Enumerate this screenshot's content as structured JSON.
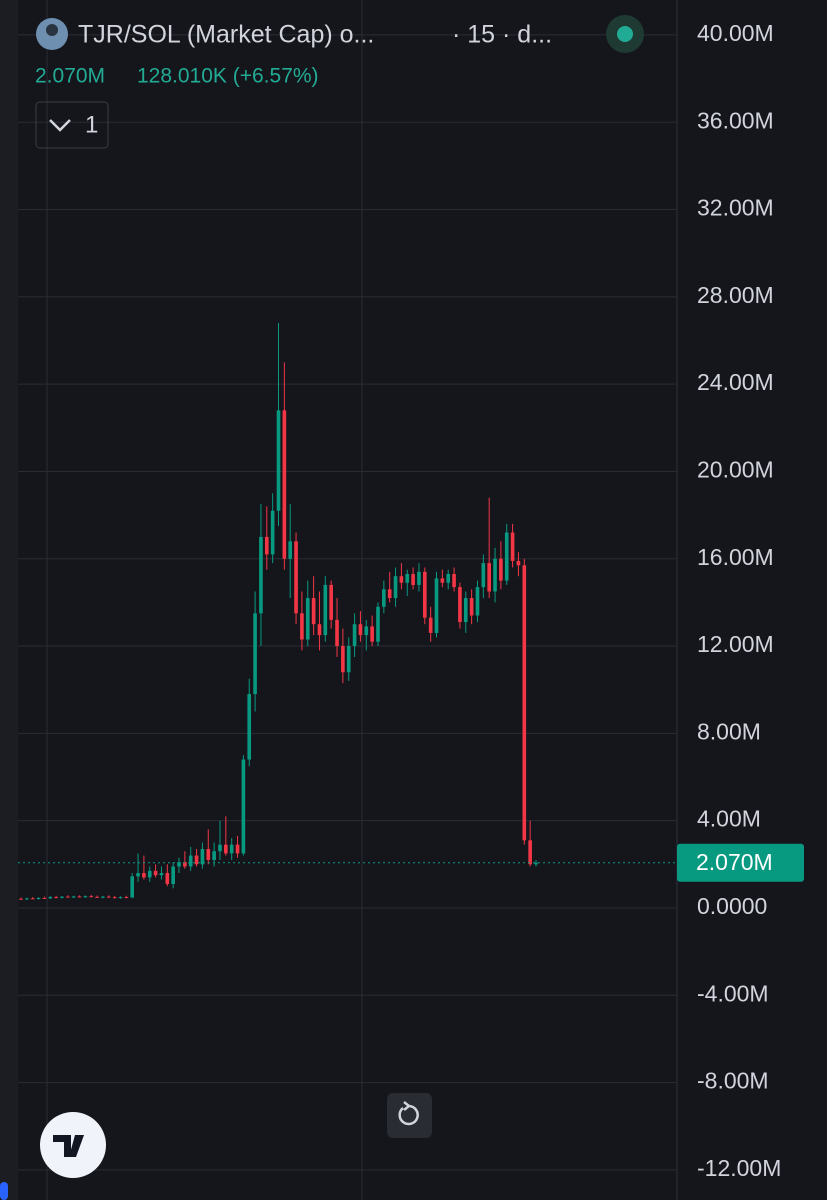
{
  "header": {
    "title": "TJR/SOL (Market Cap) o...",
    "interval": "· 15 · d...",
    "price": "2.070M",
    "change": "128.010K (+6.57%)",
    "button": "1"
  },
  "chart_data": {
    "type": "candlestick",
    "up_color": "#089981",
    "down_color": "#f23645",
    "grid": true,
    "ylim": [
      -13.38,
      41.6
    ],
    "yticks": [
      {
        "value": 40,
        "label": "40.00M"
      },
      {
        "value": 36,
        "label": "36.00M"
      },
      {
        "value": 32,
        "label": "32.00M"
      },
      {
        "value": 28,
        "label": "28.00M"
      },
      {
        "value": 24,
        "label": "24.00M"
      },
      {
        "value": 20,
        "label": "20.00M"
      },
      {
        "value": 16,
        "label": "16.00M"
      },
      {
        "value": 12,
        "label": "12.00M"
      },
      {
        "value": 8,
        "label": "8.00M"
      },
      {
        "value": 4,
        "label": "4.00M"
      },
      {
        "value": 0,
        "label": "0.0000"
      },
      {
        "value": -4,
        "label": "-4.00M"
      },
      {
        "value": -8,
        "label": "-8.00M"
      },
      {
        "value": -12,
        "label": "-12.00M"
      }
    ],
    "candles": [
      {
        "o": 0.42,
        "h": 0.48,
        "l": 0.38,
        "c": 0.4
      },
      {
        "o": 0.4,
        "h": 0.47,
        "l": 0.36,
        "c": 0.44
      },
      {
        "o": 0.44,
        "h": 0.5,
        "l": 0.4,
        "c": 0.41
      },
      {
        "o": 0.41,
        "h": 0.49,
        "l": 0.38,
        "c": 0.46
      },
      {
        "o": 0.46,
        "h": 0.52,
        "l": 0.42,
        "c": 0.44
      },
      {
        "o": 0.44,
        "h": 0.55,
        "l": 0.41,
        "c": 0.5
      },
      {
        "o": 0.5,
        "h": 0.56,
        "l": 0.45,
        "c": 0.47
      },
      {
        "o": 0.47,
        "h": 0.54,
        "l": 0.43,
        "c": 0.52
      },
      {
        "o": 0.52,
        "h": 0.58,
        "l": 0.48,
        "c": 0.49
      },
      {
        "o": 0.49,
        "h": 0.56,
        "l": 0.45,
        "c": 0.53
      },
      {
        "o": 0.53,
        "h": 0.58,
        "l": 0.48,
        "c": 0.5
      },
      {
        "o": 0.5,
        "h": 0.57,
        "l": 0.46,
        "c": 0.54
      },
      {
        "o": 0.54,
        "h": 0.6,
        "l": 0.49,
        "c": 0.51
      },
      {
        "o": 0.51,
        "h": 0.57,
        "l": 0.46,
        "c": 0.48
      },
      {
        "o": 0.48,
        "h": 0.55,
        "l": 0.44,
        "c": 0.52
      },
      {
        "o": 0.52,
        "h": 0.58,
        "l": 0.47,
        "c": 0.49
      },
      {
        "o": 0.49,
        "h": 0.55,
        "l": 0.44,
        "c": 0.47
      },
      {
        "o": 0.47,
        "h": 0.53,
        "l": 0.42,
        "c": 0.5
      },
      {
        "o": 0.5,
        "h": 0.56,
        "l": 0.45,
        "c": 0.48
      },
      {
        "o": 0.48,
        "h": 1.6,
        "l": 0.45,
        "c": 1.45
      },
      {
        "o": 1.45,
        "h": 2.5,
        "l": 1.2,
        "c": 1.6
      },
      {
        "o": 1.6,
        "h": 2.4,
        "l": 1.3,
        "c": 1.4
      },
      {
        "o": 1.4,
        "h": 1.9,
        "l": 1.2,
        "c": 1.7
      },
      {
        "o": 1.7,
        "h": 2.0,
        "l": 1.4,
        "c": 1.5
      },
      {
        "o": 1.5,
        "h": 1.9,
        "l": 1.3,
        "c": 1.6
      },
      {
        "o": 1.6,
        "h": 2.0,
        "l": 1.0,
        "c": 1.1
      },
      {
        "o": 1.1,
        "h": 2.1,
        "l": 0.9,
        "c": 1.9
      },
      {
        "o": 1.9,
        "h": 2.3,
        "l": 1.6,
        "c": 2.1
      },
      {
        "o": 2.1,
        "h": 2.6,
        "l": 1.8,
        "c": 1.9
      },
      {
        "o": 1.9,
        "h": 2.8,
        "l": 1.7,
        "c": 2.4
      },
      {
        "o": 2.4,
        "h": 2.7,
        "l": 1.9,
        "c": 2.0
      },
      {
        "o": 2.0,
        "h": 3.0,
        "l": 1.8,
        "c": 2.7
      },
      {
        "o": 2.7,
        "h": 3.6,
        "l": 2.0,
        "c": 2.2
      },
      {
        "o": 2.2,
        "h": 3.0,
        "l": 1.9,
        "c": 2.6
      },
      {
        "o": 2.6,
        "h": 4.0,
        "l": 2.2,
        "c": 2.9
      },
      {
        "o": 2.9,
        "h": 4.2,
        "l": 2.4,
        "c": 2.5
      },
      {
        "o": 2.5,
        "h": 3.2,
        "l": 2.2,
        "c": 2.9
      },
      {
        "o": 2.9,
        "h": 3.3,
        "l": 2.3,
        "c": 2.5
      },
      {
        "o": 2.5,
        "h": 7.0,
        "l": 2.4,
        "c": 6.8
      },
      {
        "o": 6.8,
        "h": 10.5,
        "l": 6.5,
        "c": 9.8
      },
      {
        "o": 9.8,
        "h": 14.5,
        "l": 9.0,
        "c": 13.5
      },
      {
        "o": 13.5,
        "h": 18.5,
        "l": 12,
        "c": 17
      },
      {
        "o": 17,
        "h": 18.4,
        "l": 15.5,
        "c": 16.2
      },
      {
        "o": 16.2,
        "h": 19,
        "l": 15.8,
        "c": 18.2
      },
      {
        "o": 18.2,
        "h": 26.8,
        "l": 17.5,
        "c": 22.8
      },
      {
        "o": 22.8,
        "h": 25,
        "l": 15.5,
        "c": 16
      },
      {
        "o": 16,
        "h": 18.5,
        "l": 14.2,
        "c": 16.8
      },
      {
        "o": 16.8,
        "h": 17.2,
        "l": 13,
        "c": 13.5
      },
      {
        "o": 13.5,
        "h": 14.5,
        "l": 11.8,
        "c": 12.3
      },
      {
        "o": 12.3,
        "h": 15,
        "l": 12,
        "c": 14.2
      },
      {
        "o": 14.2,
        "h": 15.2,
        "l": 12.5,
        "c": 13
      },
      {
        "o": 13,
        "h": 14.5,
        "l": 11.8,
        "c": 12.5
      },
      {
        "o": 12.5,
        "h": 15.2,
        "l": 12.2,
        "c": 14.8
      },
      {
        "o": 14.8,
        "h": 15,
        "l": 12.8,
        "c": 13.2
      },
      {
        "o": 13.2,
        "h": 14.2,
        "l": 11.5,
        "c": 12
      },
      {
        "o": 12,
        "h": 12.8,
        "l": 10.3,
        "c": 10.8
      },
      {
        "o": 10.8,
        "h": 12.4,
        "l": 10.4,
        "c": 12
      },
      {
        "o": 12,
        "h": 13.5,
        "l": 11.5,
        "c": 13
      },
      {
        "o": 13,
        "h": 13.6,
        "l": 12.2,
        "c": 12.5
      },
      {
        "o": 12.5,
        "h": 13.2,
        "l": 11.8,
        "c": 12.9
      },
      {
        "o": 12.9,
        "h": 13.4,
        "l": 12,
        "c": 12.2
      },
      {
        "o": 12.2,
        "h": 14,
        "l": 12,
        "c": 13.8
      },
      {
        "o": 13.8,
        "h": 15,
        "l": 13.5,
        "c": 14.6
      },
      {
        "o": 14.6,
        "h": 15.4,
        "l": 14,
        "c": 14.2
      },
      {
        "o": 14.2,
        "h": 15.6,
        "l": 13.8,
        "c": 15.2
      },
      {
        "o": 15.2,
        "h": 15.8,
        "l": 14.6,
        "c": 14.9
      },
      {
        "o": 14.9,
        "h": 15.5,
        "l": 14.3,
        "c": 15.3
      },
      {
        "o": 15.3,
        "h": 15.6,
        "l": 14.6,
        "c": 14.8
      },
      {
        "o": 14.8,
        "h": 15.8,
        "l": 14.5,
        "c": 15.4
      },
      {
        "o": 15.4,
        "h": 15.6,
        "l": 13,
        "c": 13.3
      },
      {
        "o": 13.3,
        "h": 13.8,
        "l": 12.2,
        "c": 12.6
      },
      {
        "o": 12.6,
        "h": 15.4,
        "l": 12.4,
        "c": 15.1
      },
      {
        "o": 15.1,
        "h": 15.5,
        "l": 14.7,
        "c": 14.9
      },
      {
        "o": 14.9,
        "h": 15.5,
        "l": 14.6,
        "c": 15.3
      },
      {
        "o": 15.3,
        "h": 15.6,
        "l": 14.5,
        "c": 14.7
      },
      {
        "o": 14.7,
        "h": 14.9,
        "l": 12.8,
        "c": 13.1
      },
      {
        "o": 13.1,
        "h": 14.5,
        "l": 12.6,
        "c": 14.2
      },
      {
        "o": 14.2,
        "h": 14.6,
        "l": 13,
        "c": 13.4
      },
      {
        "o": 13.4,
        "h": 15,
        "l": 13.1,
        "c": 14.7
      },
      {
        "o": 14.7,
        "h": 16.2,
        "l": 14.2,
        "c": 15.8
      },
      {
        "o": 15.8,
        "h": 18.8,
        "l": 14.2,
        "c": 14.5
      },
      {
        "o": 14.5,
        "h": 16.5,
        "l": 14,
        "c": 16
      },
      {
        "o": 16,
        "h": 16.8,
        "l": 14.6,
        "c": 15
      },
      {
        "o": 15,
        "h": 17.6,
        "l": 14.8,
        "c": 17.2
      },
      {
        "o": 17.2,
        "h": 17.6,
        "l": 15.6,
        "c": 15.9
      },
      {
        "o": 15.9,
        "h": 16.3,
        "l": 15.2,
        "c": 15.7
      },
      {
        "o": 15.7,
        "h": 16,
        "l": 2.9,
        "c": 3.1
      },
      {
        "o": 3.1,
        "h": 4.0,
        "l": 1.9,
        "c": 2.0
      },
      {
        "o": 2.0,
        "h": 2.2,
        "l": 1.9,
        "c": 2.07
      }
    ]
  }
}
